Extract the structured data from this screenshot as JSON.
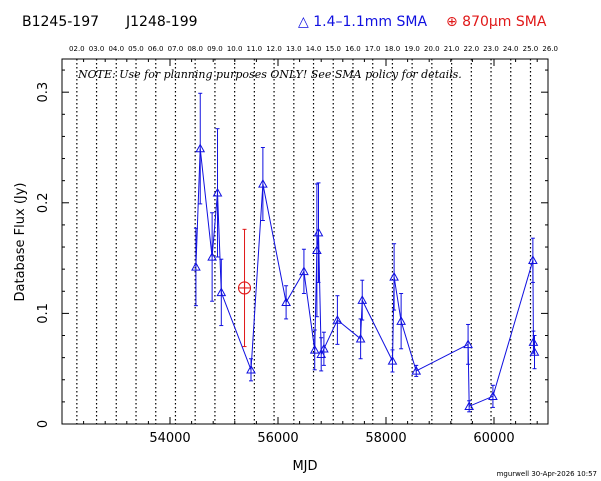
{
  "header": {
    "source_name": "B1245-197",
    "alt_name": "J1248-199",
    "legend_low": "△ 1.4–1.1mm SMA",
    "legend_high": "⊕ 870μm SMA"
  },
  "footer": {
    "credit": "mgurwell 30-Apr-2026 10:57"
  },
  "colors": {
    "low_band": "#1010e0",
    "high_band": "#e01818",
    "axes": "#000000"
  },
  "chart_data": {
    "type": "scatter",
    "title": "",
    "xlabel": "MJD",
    "ylabel": "Database Flux (Jy)",
    "note": "NOTE: Use for planning purposes ONLY! See SMA policy for details.",
    "xlim": [
      52000,
      61000
    ],
    "ylim": [
      0,
      0.33
    ],
    "x_ticks": [
      54000,
      56000,
      58000,
      60000
    ],
    "y_ticks": [
      0,
      0.1,
      0.2,
      0.3
    ],
    "y_tick_labels": [
      "0",
      "0.1",
      "0.2",
      "0.3"
    ],
    "top_axis_labels": [
      "02.0",
      "03.0",
      "04.0",
      "05.0",
      "06.0",
      "07.0",
      "08.0",
      "09.0",
      "10.0",
      "11.0",
      "12.0",
      "13.0",
      "14.0",
      "15.0",
      "16.0",
      "17.0",
      "18.0",
      "19.0",
      "20.0",
      "21.0",
      "22.0",
      "23.0",
      "24.0",
      "25.0",
      "26.0"
    ],
    "year_lines_mjd": [
      52275,
      52640,
      53005,
      53371,
      53736,
      54101,
      54466,
      54832,
      55197,
      55562,
      55927,
      56293,
      56658,
      57023,
      57388,
      57754,
      58119,
      58484,
      58849,
      59215,
      59580,
      59945,
      60310,
      60676
    ],
    "grid": false,
    "series": [
      {
        "marker": "triangle",
        "connected": true,
        "points": [
          {
            "x": 54480,
            "y": 0.142,
            "err": 0.035
          },
          {
            "x": 54560,
            "y": 0.249,
            "err": 0.05
          },
          {
            "x": 54780,
            "y": 0.151,
            "err": 0.04
          },
          {
            "x": 54880,
            "y": 0.209,
            "err": 0.058
          },
          {
            "x": 54950,
            "y": 0.119,
            "err": 0.03
          },
          {
            "x": 55500,
            "y": 0.049,
            "err": 0.01
          },
          {
            "x": 55720,
            "y": 0.217,
            "err": 0.033
          },
          {
            "x": 56150,
            "y": 0.11,
            "err": 0.015
          },
          {
            "x": 56480,
            "y": 0.138,
            "err": 0.02
          },
          {
            "x": 56680,
            "y": 0.067,
            "err": 0.018
          },
          {
            "x": 56720,
            "y": 0.157,
            "err": 0.06
          },
          {
            "x": 56750,
            "y": 0.173,
            "err": 0.045
          },
          {
            "x": 56800,
            "y": 0.063,
            "err": 0.015
          },
          {
            "x": 56850,
            "y": 0.068,
            "err": 0.015
          },
          {
            "x": 57100,
            "y": 0.094,
            "err": 0.022
          },
          {
            "x": 57530,
            "y": 0.077,
            "err": 0.018
          },
          {
            "x": 57560,
            "y": 0.112,
            "err": 0.018
          },
          {
            "x": 58120,
            "y": 0.057,
            "err": 0.01
          },
          {
            "x": 58150,
            "y": 0.133,
            "err": 0.03
          },
          {
            "x": 58280,
            "y": 0.093,
            "err": 0.025
          },
          {
            "x": 58560,
            "y": 0.048,
            "err": 0.005
          },
          {
            "x": 59520,
            "y": 0.072,
            "err": 0.018
          },
          {
            "x": 59540,
            "y": 0.016,
            "err": 0.005
          },
          {
            "x": 59980,
            "y": 0.025,
            "err": 0.01
          },
          {
            "x": 60720,
            "y": 0.148,
            "err": 0.02
          },
          {
            "x": 60730,
            "y": 0.074,
            "err": 0.01
          },
          {
            "x": 60750,
            "y": 0.065,
            "err": 0.015
          }
        ]
      },
      {
        "marker": "circle-plus",
        "connected": false,
        "points": [
          {
            "x": 55380,
            "y": 0.123,
            "err": 0.053
          }
        ]
      }
    ]
  }
}
